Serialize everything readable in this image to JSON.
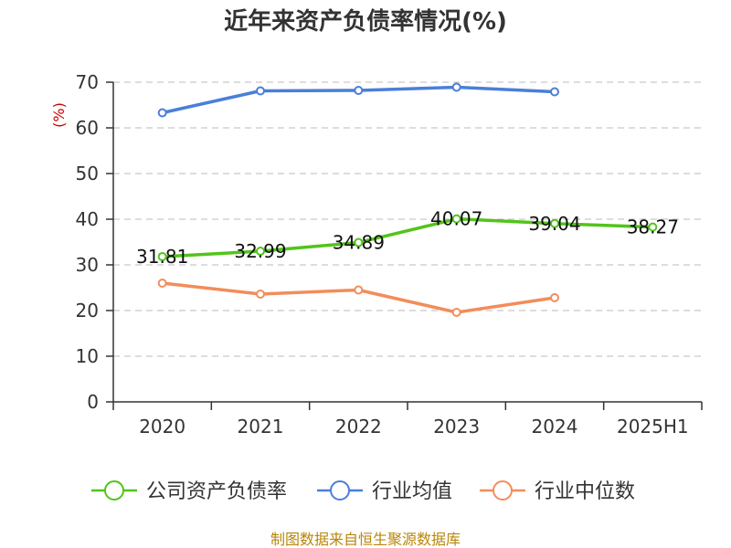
{
  "chart_data": {
    "type": "line",
    "title": "近年来资产负债率情况(%)",
    "ylabel": "(%)",
    "xlabel": "",
    "categories": [
      "2020",
      "2021",
      "2022",
      "2023",
      "2024",
      "2025H1"
    ],
    "ylim": [
      0,
      70
    ],
    "yticks": [
      0,
      10,
      20,
      30,
      40,
      50,
      60,
      70
    ],
    "grid": true,
    "legend_position": "bottom",
    "series": [
      {
        "name": "公司资产负债率",
        "color": "#52c41a",
        "values": [
          31.81,
          32.99,
          34.89,
          40.07,
          39.04,
          38.27
        ],
        "labels": [
          "31.81",
          "32.99",
          "34.89",
          "40.07",
          "39.04",
          "38.27"
        ]
      },
      {
        "name": "行业均值",
        "color": "#4a7fd9",
        "values": [
          63.3,
          68.1,
          68.2,
          68.9,
          67.9,
          null
        ]
      },
      {
        "name": "行业中位数",
        "color": "#f28d5a",
        "values": [
          26.0,
          23.6,
          24.5,
          19.6,
          22.8,
          null
        ]
      }
    ]
  },
  "source_note": "制图数据来自恒生聚源数据库"
}
